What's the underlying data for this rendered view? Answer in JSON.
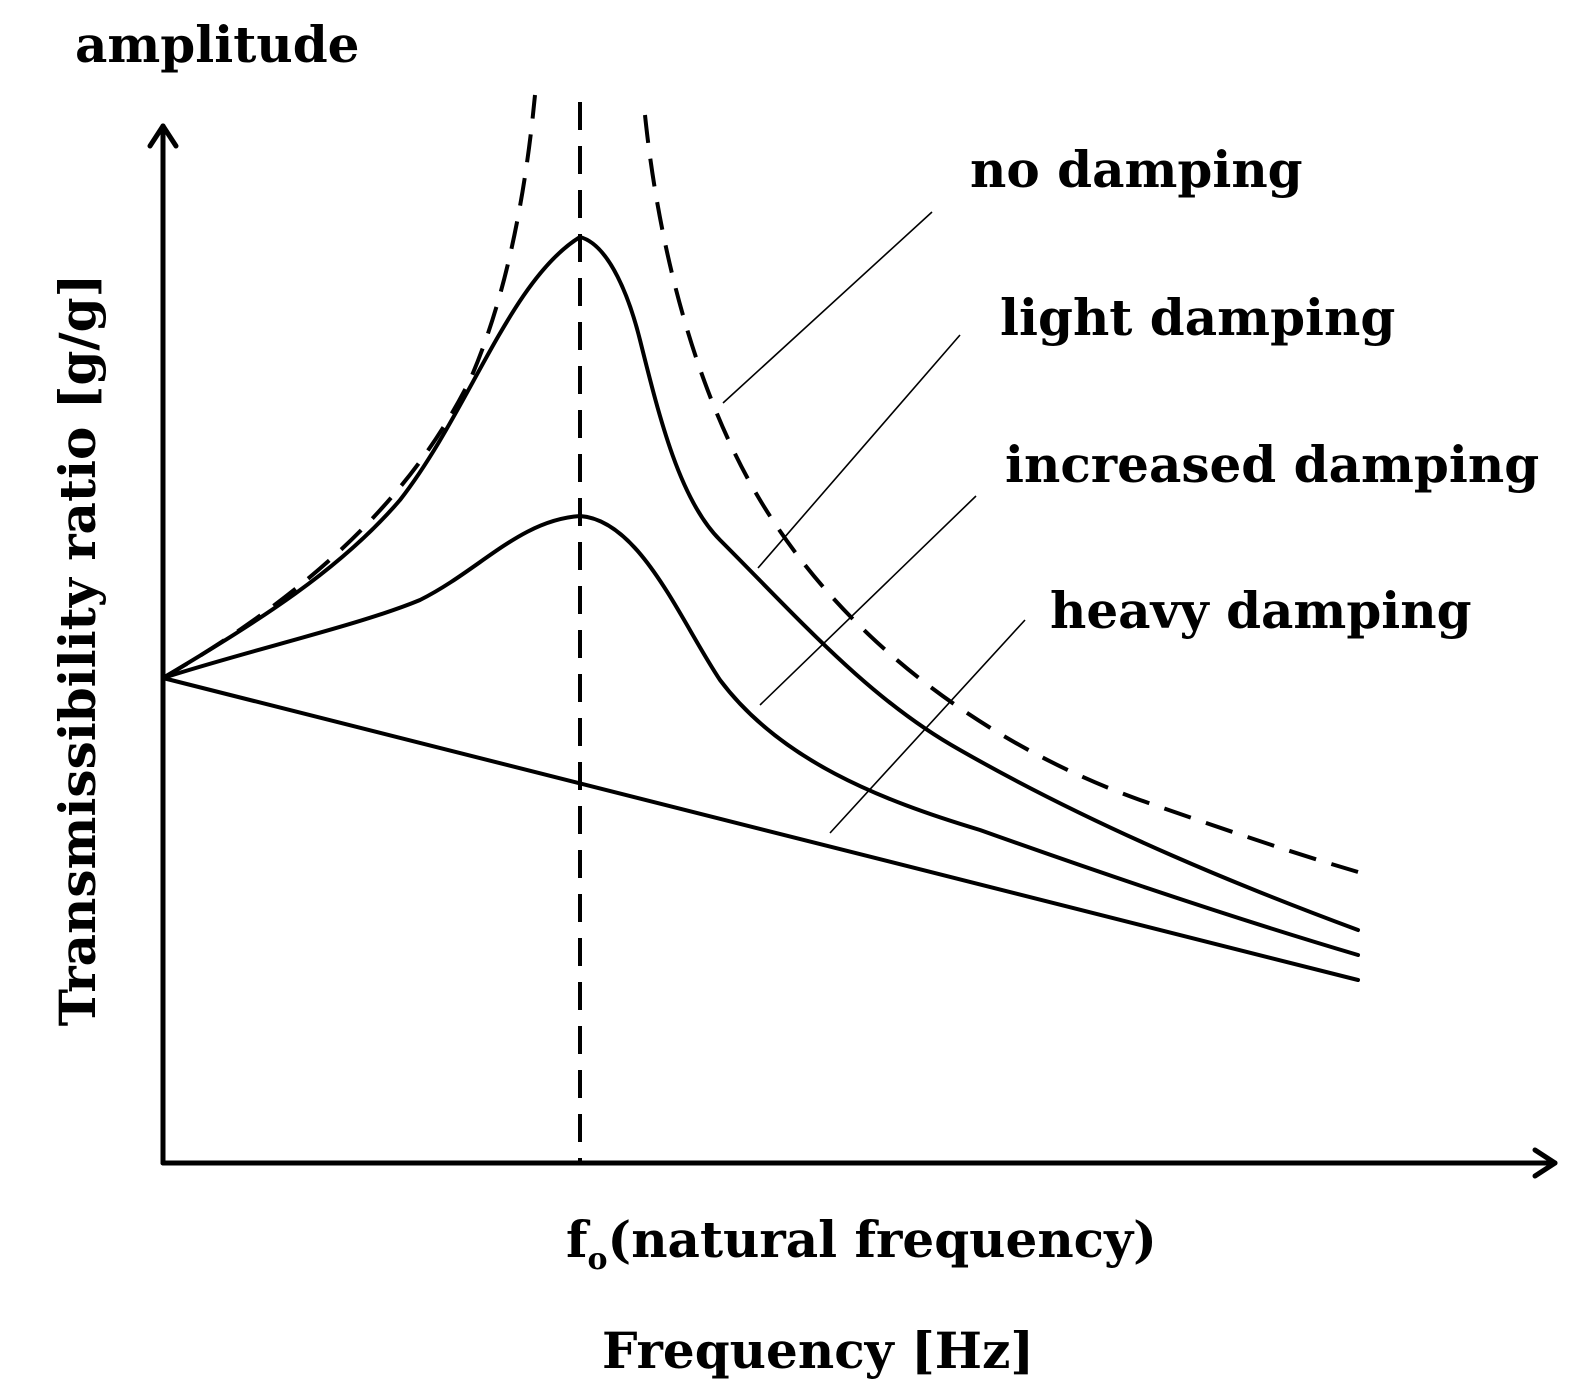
{
  "axes": {
    "y_top_label": "amplitude",
    "y_label": "Transmissibility ratio [g/g]",
    "x_label": "Frequency [Hz]",
    "natural_frequency_symbol": "f",
    "natural_frequency_subscript": "o",
    "natural_frequency_text": "(natural frequency)"
  },
  "curves": [
    {
      "key": "no_damping",
      "label": "no damping",
      "style": "dashed"
    },
    {
      "key": "light_damping",
      "label": "light damping",
      "style": "solid"
    },
    {
      "key": "increased_damping",
      "label": "increased damping",
      "style": "solid"
    },
    {
      "key": "heavy_damping",
      "label": "heavy damping",
      "style": "solid"
    }
  ],
  "colors": {
    "line": "#000000",
    "background": "#ffffff"
  }
}
